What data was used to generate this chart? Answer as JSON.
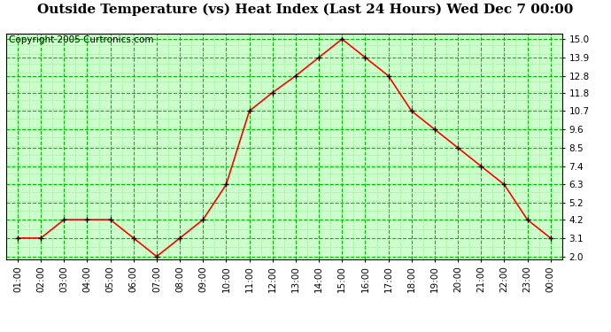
{
  "title": "Outside Temperature (vs) Heat Index (Last 24 Hours) Wed Dec 7 00:00",
  "copyright": "Copyright 2005 Curtronics.com",
  "x_labels": [
    "01:00",
    "02:00",
    "03:00",
    "04:00",
    "05:00",
    "06:00",
    "07:00",
    "08:00",
    "09:00",
    "10:00",
    "11:00",
    "12:00",
    "13:00",
    "14:00",
    "15:00",
    "16:00",
    "17:00",
    "18:00",
    "19:00",
    "20:00",
    "21:00",
    "22:00",
    "23:00",
    "00:00"
  ],
  "y_values": [
    3.1,
    3.1,
    4.2,
    4.2,
    4.2,
    3.1,
    2.0,
    3.1,
    4.2,
    6.3,
    10.7,
    11.8,
    12.8,
    13.9,
    15.0,
    13.9,
    12.8,
    10.7,
    9.6,
    8.5,
    7.4,
    6.3,
    4.2,
    3.1
  ],
  "y_ticks": [
    2.0,
    3.1,
    4.2,
    5.2,
    6.3,
    7.4,
    8.5,
    9.6,
    10.7,
    11.8,
    12.8,
    13.9,
    15.0
  ],
  "ylim": [
    1.85,
    15.35
  ],
  "line_color": "#FF0000",
  "marker_color": "#000000",
  "bg_color": "#FFFFFF",
  "plot_bg_color": "#CCFFCC",
  "grid_major_color": "#00BB00",
  "grid_minor_color": "#99EE99",
  "title_fontsize": 11,
  "copyright_fontsize": 7.5,
  "tick_fontsize": 7.5
}
